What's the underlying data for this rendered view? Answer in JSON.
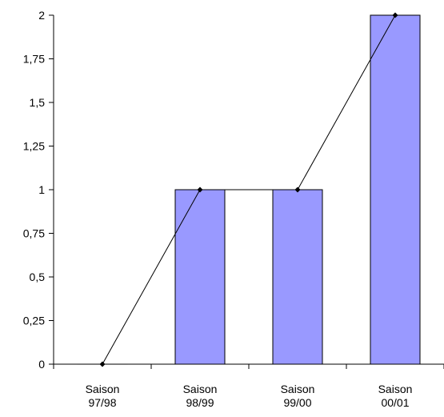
{
  "chart_data": {
    "type": "bar",
    "categories": [
      [
        "Saison",
        "97/98"
      ],
      [
        "Saison",
        "98/99"
      ],
      [
        "Saison",
        "99/00"
      ],
      [
        "Saison",
        "00/01"
      ]
    ],
    "series": [
      {
        "kind": "bar",
        "values": [
          0,
          1,
          1,
          2
        ],
        "color": "#9999ff"
      },
      {
        "kind": "line",
        "values": [
          0,
          1,
          1,
          2
        ],
        "color": "#000000"
      }
    ],
    "y_ticks": [
      "0",
      "0,25",
      "0,5",
      "0,75",
      "1",
      "1,25",
      "1,5",
      "1,75",
      "2"
    ],
    "ylim": [
      0,
      2
    ],
    "grid": false,
    "title": "",
    "xlabel": "",
    "ylabel": ""
  }
}
